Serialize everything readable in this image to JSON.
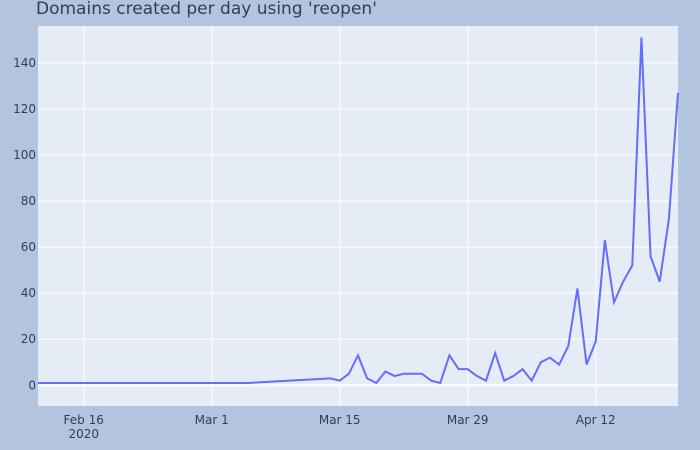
{
  "chart_data": {
    "type": "line",
    "title": "Domains created per day using 'reopen'",
    "xlabel": "",
    "ylabel": "",
    "x_ticks": [
      {
        "date": "2020-02-16",
        "label": "Feb 16",
        "sublabel": "2020"
      },
      {
        "date": "2020-03-01",
        "label": "Mar 1",
        "sublabel": ""
      },
      {
        "date": "2020-03-15",
        "label": "Mar 15",
        "sublabel": ""
      },
      {
        "date": "2020-03-29",
        "label": "Mar 29",
        "sublabel": ""
      },
      {
        "date": "2020-04-12",
        "label": "Apr 12",
        "sublabel": ""
      }
    ],
    "y_ticks": [
      0,
      20,
      40,
      60,
      80,
      100,
      120,
      140
    ],
    "xlim": [
      "2020-02-11",
      "2020-04-21"
    ],
    "ylim": [
      -9,
      156
    ],
    "grid": true,
    "colors": {
      "line": "#636efa",
      "plot_bg": "#e5ecf6",
      "paper_bg": "#b3c5de",
      "grid": "#ffffff",
      "text": "#2a3f5f"
    },
    "series": [
      {
        "x": [
          "2020-02-11",
          "2020-03-05",
          "2020-03-14",
          "2020-03-15",
          "2020-03-16",
          "2020-03-17",
          "2020-03-18",
          "2020-03-19",
          "2020-03-20",
          "2020-03-21",
          "2020-03-22",
          "2020-03-23",
          "2020-03-24",
          "2020-03-25",
          "2020-03-26",
          "2020-03-27",
          "2020-03-28",
          "2020-03-29",
          "2020-03-30",
          "2020-03-31",
          "2020-04-01",
          "2020-04-02",
          "2020-04-03",
          "2020-04-04",
          "2020-04-05",
          "2020-04-06",
          "2020-04-07",
          "2020-04-08",
          "2020-04-09",
          "2020-04-10",
          "2020-04-11",
          "2020-04-12",
          "2020-04-13",
          "2020-04-14",
          "2020-04-15",
          "2020-04-16",
          "2020-04-17",
          "2020-04-18",
          "2020-04-19",
          "2020-04-20",
          "2020-04-21"
        ],
        "y": [
          1,
          1,
          3,
          2,
          5,
          13,
          3,
          1,
          6,
          4,
          5,
          5,
          5,
          2,
          1,
          13,
          7,
          7,
          4,
          2,
          14,
          2,
          4,
          7,
          2,
          10,
          12,
          9,
          17,
          42,
          9,
          19,
          63,
          36,
          45,
          52,
          151,
          56,
          45,
          72,
          127
        ]
      }
    ]
  }
}
